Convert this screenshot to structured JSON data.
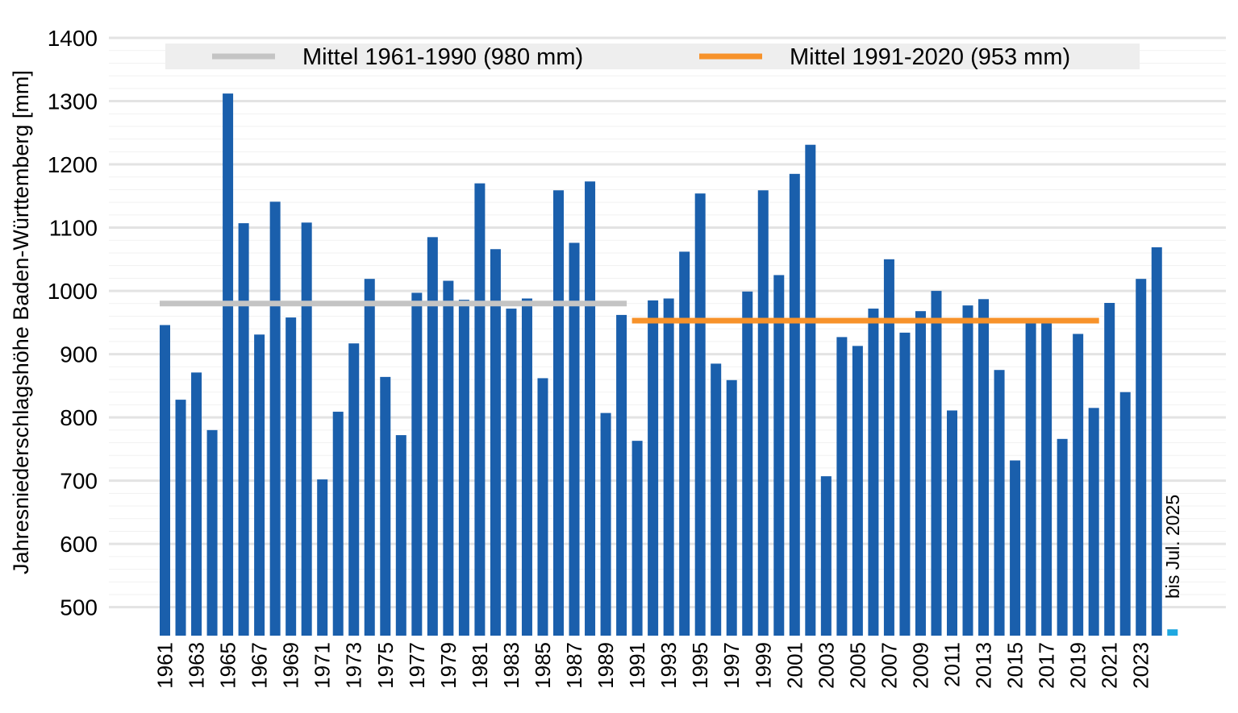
{
  "chart_data": {
    "type": "bar",
    "ylabel": "Jahresniederschlagshöhe Baden-Württemberg [mm]",
    "xlabel": "",
    "ylim": [
      455,
      1400
    ],
    "yticks": [
      500,
      600,
      700,
      800,
      900,
      1000,
      1100,
      1200,
      1300,
      1400
    ],
    "grid": true,
    "legend_position": "top",
    "categories": [
      "1961",
      "1962",
      "1963",
      "1964",
      "1965",
      "1966",
      "1967",
      "1968",
      "1969",
      "1970",
      "1971",
      "1972",
      "1973",
      "1974",
      "1975",
      "1976",
      "1977",
      "1978",
      "1979",
      "1980",
      "1981",
      "1982",
      "1983",
      "1984",
      "1985",
      "1986",
      "1987",
      "1988",
      "1989",
      "1990",
      "1991",
      "1992",
      "1993",
      "1994",
      "1995",
      "1996",
      "1997",
      "1998",
      "1999",
      "2000",
      "2001",
      "2002",
      "2003",
      "2004",
      "2005",
      "2006",
      "2007",
      "2008",
      "2009",
      "2010",
      "2011",
      "2012",
      "2013",
      "2014",
      "2015",
      "2016",
      "2017",
      "2018",
      "2019",
      "2020",
      "2021",
      "2022",
      "2023",
      "2024",
      "2025"
    ],
    "xtick_labels": [
      "1961",
      "1963",
      "1965",
      "1967",
      "1969",
      "1971",
      "1973",
      "1975",
      "1977",
      "1979",
      "1981",
      "1983",
      "1985",
      "1987",
      "1989",
      "1991",
      "1993",
      "1995",
      "1997",
      "1999",
      "2001",
      "2003",
      "2005",
      "2007",
      "2009",
      "2011",
      "2013",
      "2015",
      "2017",
      "2019",
      "2021",
      "2023"
    ],
    "values": [
      946,
      828,
      871,
      780,
      1312,
      1107,
      931,
      1141,
      958,
      1108,
      702,
      809,
      917,
      1019,
      864,
      772,
      997,
      1085,
      1016,
      986,
      1170,
      1066,
      972,
      988,
      862,
      1159,
      1076,
      1173,
      807,
      962,
      763,
      985,
      988,
      1062,
      1154,
      885,
      859,
      999,
      1159,
      1025,
      1185,
      1231,
      707,
      927,
      913,
      972,
      1050,
      934,
      968,
      1000,
      811,
      977,
      987,
      875,
      732,
      952,
      952,
      766,
      932,
      815,
      981,
      840,
      1019,
      1069,
      465
    ],
    "bar_color": "#1a5fac",
    "last_bar_color": "#1fa8e0",
    "reference_lines": [
      {
        "label": "Mittel 1961-1990 (980 mm)",
        "value": 980,
        "from": "1961",
        "to": "1990",
        "color": "#c4c4c4"
      },
      {
        "label": "Mittel 1991-2020 (953 mm)",
        "value": 953,
        "from": "1991",
        "to": "2020",
        "color": "#f7922a"
      }
    ],
    "annotation": "bis Jul. 2025"
  }
}
